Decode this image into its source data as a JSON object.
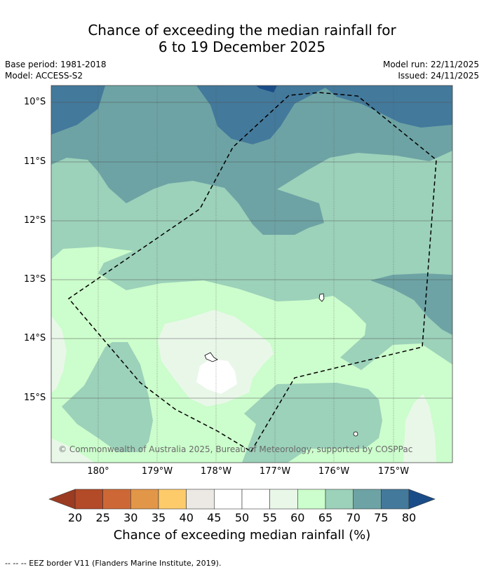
{
  "title": {
    "line1": "Chance of exceeding the median rainfall for",
    "line2": "6 to 19 December 2025"
  },
  "meta": {
    "base_period": "Base period: 1981-2018",
    "model": "Model: ACCESS-S2",
    "model_run": "Model run: 22/11/2025",
    "issued": "Issued: 24/11/2025"
  },
  "map": {
    "lat_labels": [
      "10°S",
      "11°S",
      "12°S",
      "13°S",
      "14°S",
      "15°S"
    ],
    "lon_labels": [
      "180°",
      "179°W",
      "178°W",
      "177°W",
      "176°W",
      "175°W"
    ],
    "copyright": "© Commonwealth of Australia 2025, Bureau of Meteorology, supported by COSPPac"
  },
  "colorbar": {
    "ticks": [
      "20",
      "25",
      "30",
      "35",
      "40",
      "45",
      "50",
      "55",
      "60",
      "65",
      "70",
      "75",
      "80"
    ],
    "colors": [
      "#b34a28",
      "#cd6836",
      "#e29748",
      "#fecb6b",
      "#ece8e3",
      "#ffffff",
      "#ffffff",
      "#e9f7e9",
      "#ccfdcc",
      "#9cd1ba",
      "#6da3a4",
      "#43799b"
    ],
    "under_color": "#9a3b22",
    "over_color": "#1a4c87",
    "label": "Chance of exceeding median rainfall (%)"
  },
  "footer": "--  --  -- EEZ border V11 (Flanders Marine Institute, 2019)."
}
